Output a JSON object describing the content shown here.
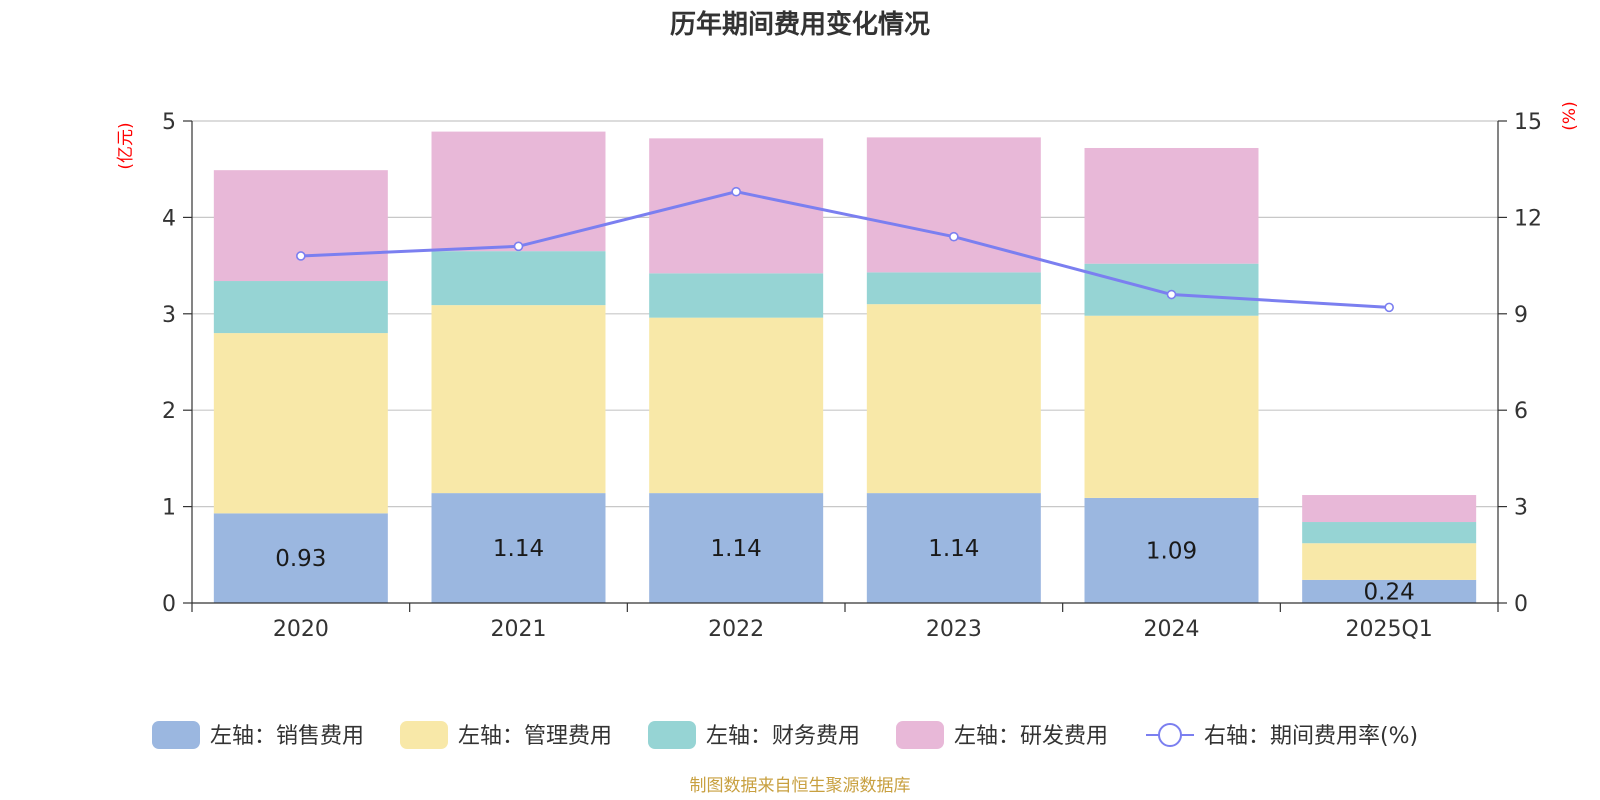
{
  "chart_data": {
    "type": "bar",
    "stacked": true,
    "title": "历年期间费用变化情况",
    "left_axis_unit": "(亿元)",
    "right_axis_unit": "(%)",
    "categories": [
      "2020",
      "2021",
      "2022",
      "2023",
      "2024",
      "2025Q1"
    ],
    "ylim_left": [
      0,
      5
    ],
    "yticks_left": [
      "0",
      "1",
      "2",
      "3",
      "4",
      "5"
    ],
    "ylim_right": [
      0,
      15
    ],
    "yticks_right": [
      "0",
      "3",
      "6",
      "9",
      "12",
      "15"
    ],
    "grid": true,
    "legend_position": "bottom",
    "series": [
      {
        "name": "左轴：销售费用",
        "axis": "left",
        "kind": "bar",
        "color": "#9bb7e0",
        "values": [
          0.93,
          1.14,
          1.14,
          1.14,
          1.09,
          0.24
        ],
        "labels": [
          "0.93",
          "1.14",
          "1.14",
          "1.14",
          "1.09",
          "0.24"
        ]
      },
      {
        "name": "左轴：管理费用",
        "axis": "left",
        "kind": "bar",
        "color": "#f8e8a8",
        "values": [
          1.87,
          1.95,
          1.82,
          1.96,
          1.89,
          0.38
        ]
      },
      {
        "name": "左轴：财务费用",
        "axis": "left",
        "kind": "bar",
        "color": "#96d4d4",
        "values": [
          0.54,
          0.56,
          0.46,
          0.33,
          0.54,
          0.22
        ]
      },
      {
        "name": "左轴：研发费用",
        "axis": "left",
        "kind": "bar",
        "color": "#e8b8d8",
        "values": [
          1.15,
          1.24,
          1.4,
          1.4,
          1.2,
          0.28
        ]
      },
      {
        "name": "右轴：期间费用率(%)",
        "axis": "right",
        "kind": "line",
        "color": "#7b7ff0",
        "values": [
          10.8,
          11.1,
          12.8,
          11.4,
          9.6,
          9.2
        ]
      }
    ]
  },
  "source_note": "制图数据来自恒生聚源数据库"
}
